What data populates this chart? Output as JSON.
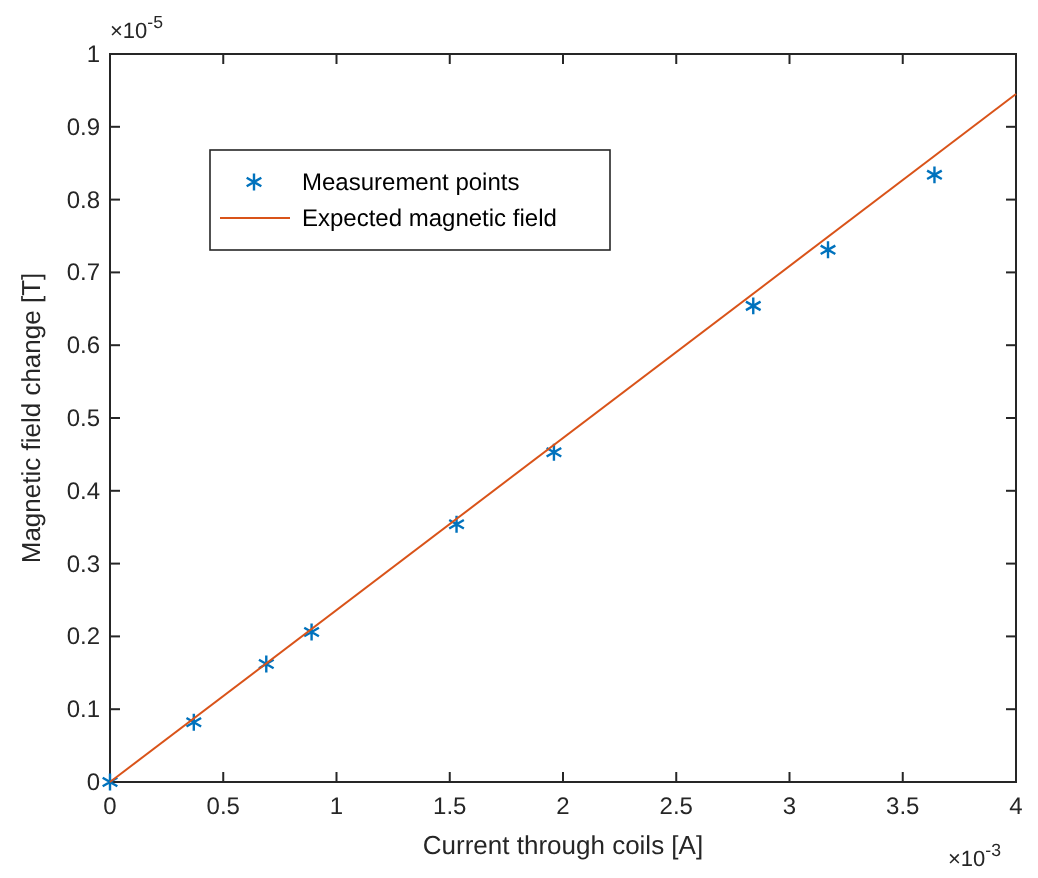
{
  "chart_data": {
    "type": "scatter",
    "xlabel": "Current through coils [A]",
    "ylabel": "Magnetic field change [T]",
    "xlim": [
      0,
      4
    ],
    "xticks": [
      0,
      0.5,
      1,
      1.5,
      2,
      2.5,
      3,
      3.5,
      4
    ],
    "ylim": [
      0,
      1
    ],
    "yticks": [
      0,
      0.1,
      0.2,
      0.3,
      0.4,
      0.5,
      0.6,
      0.7,
      0.8,
      0.9,
      1
    ],
    "series": [
      {
        "name": "Measurement points",
        "color": "#0072bd",
        "marker": "cross",
        "x": [
          0,
          0.37,
          0.69,
          0.89,
          1.53,
          1.96,
          2.84,
          3.17,
          3.64
        ],
        "values": [
          0,
          0.082,
          0.162,
          0.206,
          0.354,
          0.453,
          0.654,
          0.731,
          0.834
        ]
      },
      {
        "name": "Expected magnetic field",
        "type": "line",
        "color": "#d95319",
        "x": [
          0,
          4
        ],
        "values": [
          0,
          0.945
        ]
      }
    ],
    "annotations": [
      "×10$^{-3}$",
      "×10$^{-5}$"
    ],
    "grid": false,
    "legend": "top left"
  }
}
